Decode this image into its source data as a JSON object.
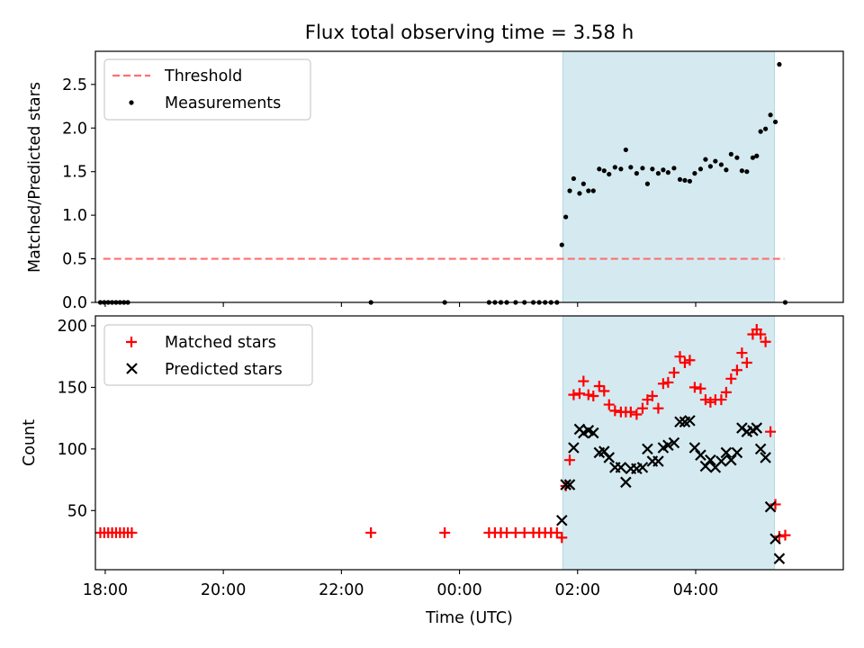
{
  "figure": {
    "title": "Flux total observing time = 3.58 h"
  },
  "chart_data": [
    {
      "type": "scatter",
      "title": "Flux total observing time = 3.58 h",
      "xlabel": "",
      "ylabel": "Matched/Predicted stars",
      "xlim": [
        "17:50",
        "06:30"
      ],
      "ylim": [
        0,
        2.88
      ],
      "yticks": [
        0.0,
        0.5,
        1.0,
        1.5,
        2.0,
        2.5
      ],
      "ytick_labels": [
        "0.0",
        "0.5",
        "1.0",
        "1.5",
        "2.0",
        "2.5"
      ],
      "xticks": [
        "18:00",
        "20:00",
        "22:00",
        "00:00",
        "02:00",
        "04:00"
      ],
      "shaded_interval": [
        "01:45",
        "05:20"
      ],
      "shade_color": "#d4eaf0",
      "legend_position": "top-left",
      "threshold": {
        "name": "Threshold",
        "y": 0.5,
        "x_range": [
          "17:58",
          "05:30"
        ],
        "color": "#ff6f6f",
        "style": "dashed"
      },
      "series": [
        {
          "name": "Measurements",
          "color": "#000000",
          "marker": "dot",
          "points": [
            [
              "17:55",
              0
            ],
            [
              "17:59",
              0
            ],
            [
              "18:03",
              0
            ],
            [
              "18:07",
              0
            ],
            [
              "18:11",
              0
            ],
            [
              "18:15",
              0
            ],
            [
              "18:19",
              0
            ],
            [
              "18:23",
              0
            ],
            [
              "22:30",
              0
            ],
            [
              "23:45",
              0
            ],
            [
              "00:30",
              0
            ],
            [
              "00:36",
              0
            ],
            [
              "00:42",
              0
            ],
            [
              "00:48",
              0
            ],
            [
              "00:57",
              0
            ],
            [
              "01:06",
              0
            ],
            [
              "01:15",
              0
            ],
            [
              "01:21",
              0
            ],
            [
              "01:27",
              0
            ],
            [
              "01:33",
              0
            ],
            [
              "01:39",
              0
            ],
            [
              "01:44",
              0.66
            ],
            [
              "01:48",
              0.98
            ],
            [
              "01:52",
              1.28
            ],
            [
              "01:56",
              1.42
            ],
            [
              "02:02",
              1.25
            ],
            [
              "02:06",
              1.36
            ],
            [
              "02:11",
              1.28
            ],
            [
              "02:16",
              1.28
            ],
            [
              "02:22",
              1.53
            ],
            [
              "02:27",
              1.51
            ],
            [
              "02:32",
              1.47
            ],
            [
              "02:38",
              1.55
            ],
            [
              "02:44",
              1.53
            ],
            [
              "02:49",
              1.75
            ],
            [
              "02:54",
              1.55
            ],
            [
              "03:00",
              1.48
            ],
            [
              "03:06",
              1.54
            ],
            [
              "03:11",
              1.36
            ],
            [
              "03:16",
              1.53
            ],
            [
              "03:22",
              1.48
            ],
            [
              "03:27",
              1.52
            ],
            [
              "03:32",
              1.49
            ],
            [
              "03:38",
              1.54
            ],
            [
              "03:44",
              1.41
            ],
            [
              "03:49",
              1.4
            ],
            [
              "03:54",
              1.39
            ],
            [
              "03:59",
              1.48
            ],
            [
              "04:05",
              1.53
            ],
            [
              "04:10",
              1.64
            ],
            [
              "04:15",
              1.56
            ],
            [
              "04:20",
              1.62
            ],
            [
              "04:26",
              1.58
            ],
            [
              "04:31",
              1.52
            ],
            [
              "04:36",
              1.7
            ],
            [
              "04:42",
              1.66
            ],
            [
              "04:47",
              1.51
            ],
            [
              "04:52",
              1.5
            ],
            [
              "04:58",
              1.66
            ],
            [
              "05:02",
              1.68
            ],
            [
              "05:06",
              1.96
            ],
            [
              "05:11",
              1.99
            ],
            [
              "05:16",
              2.15
            ],
            [
              "05:21",
              2.07
            ],
            [
              "05:25",
              2.73
            ],
            [
              "05:31",
              0
            ]
          ]
        }
      ]
    },
    {
      "type": "scatter",
      "title": "",
      "xlabel": "Time (UTC)",
      "ylabel": "Count",
      "xlim": [
        "17:50",
        "06:30"
      ],
      "ylim": [
        2,
        208
      ],
      "yticks": [
        50,
        100,
        150,
        200
      ],
      "ytick_labels": [
        "50",
        "100",
        "150",
        "200"
      ],
      "xticks": [
        "18:00",
        "20:00",
        "22:00",
        "00:00",
        "02:00",
        "04:00"
      ],
      "xtick_labels": [
        "18:00",
        "20:00",
        "22:00",
        "00:00",
        "02:00",
        "04:00"
      ],
      "shaded_interval": [
        "01:45",
        "05:20"
      ],
      "shade_color": "#d4eaf0",
      "legend_position": "top-left",
      "series": [
        {
          "name": "Matched stars",
          "color": "#ff0000",
          "marker": "plus",
          "points": [
            [
              "17:55",
              32
            ],
            [
              "17:59",
              32
            ],
            [
              "18:03",
              32
            ],
            [
              "18:07",
              32
            ],
            [
              "18:11",
              32
            ],
            [
              "18:15",
              32
            ],
            [
              "18:19",
              32
            ],
            [
              "18:23",
              32
            ],
            [
              "18:27",
              32
            ],
            [
              "22:30",
              32
            ],
            [
              "23:45",
              32
            ],
            [
              "00:30",
              32
            ],
            [
              "00:36",
              32
            ],
            [
              "00:42",
              32
            ],
            [
              "00:48",
              32
            ],
            [
              "00:57",
              32
            ],
            [
              "01:06",
              32
            ],
            [
              "01:15",
              32
            ],
            [
              "01:21",
              32
            ],
            [
              "01:27",
              32
            ],
            [
              "01:33",
              32
            ],
            [
              "01:39",
              32
            ],
            [
              "01:44",
              28
            ],
            [
              "01:48",
              70
            ],
            [
              "01:52",
              91
            ],
            [
              "01:56",
              144
            ],
            [
              "02:02",
              145
            ],
            [
              "02:06",
              155
            ],
            [
              "02:11",
              144
            ],
            [
              "02:16",
              143
            ],
            [
              "02:22",
              151
            ],
            [
              "02:27",
              147
            ],
            [
              "02:32",
              136
            ],
            [
              "02:38",
              131
            ],
            [
              "02:44",
              130
            ],
            [
              "02:49",
              130
            ],
            [
              "02:54",
              130
            ],
            [
              "03:00",
              128
            ],
            [
              "03:06",
              133
            ],
            [
              "03:11",
              140
            ],
            [
              "03:16",
              143
            ],
            [
              "03:22",
              133
            ],
            [
              "03:27",
              153
            ],
            [
              "03:32",
              154
            ],
            [
              "03:38",
              162
            ],
            [
              "03:44",
              175
            ],
            [
              "03:49",
              170
            ],
            [
              "03:54",
              172
            ],
            [
              "03:59",
              150
            ],
            [
              "04:05",
              149
            ],
            [
              "04:10",
              140
            ],
            [
              "04:15",
              138
            ],
            [
              "04:20",
              140
            ],
            [
              "04:26",
              140
            ],
            [
              "04:31",
              146
            ],
            [
              "04:36",
              157
            ],
            [
              "04:42",
              164
            ],
            [
              "04:47",
              178
            ],
            [
              "04:52",
              170
            ],
            [
              "04:58",
              193
            ],
            [
              "05:02",
              197
            ],
            [
              "05:06",
              193
            ],
            [
              "05:11",
              187
            ],
            [
              "05:16",
              114
            ],
            [
              "05:21",
              55
            ],
            [
              "05:25",
              29
            ],
            [
              "05:31",
              30
            ]
          ]
        },
        {
          "name": "Predicted stars",
          "color": "#000000",
          "marker": "x",
          "points": [
            [
              "01:44",
              42
            ],
            [
              "01:48",
              71
            ],
            [
              "01:52",
              71
            ],
            [
              "01:56",
              101
            ],
            [
              "02:02",
              116
            ],
            [
              "02:06",
              113
            ],
            [
              "02:11",
              115
            ],
            [
              "02:16",
              113
            ],
            [
              "02:22",
              97
            ],
            [
              "02:27",
              98
            ],
            [
              "02:32",
              93
            ],
            [
              "02:38",
              85
            ],
            [
              "02:44",
              85
            ],
            [
              "02:49",
              73
            ],
            [
              "02:54",
              84
            ],
            [
              "03:00",
              84
            ],
            [
              "03:06",
              85
            ],
            [
              "03:11",
              100
            ],
            [
              "03:16",
              90
            ],
            [
              "03:22",
              90
            ],
            [
              "03:27",
              101
            ],
            [
              "03:32",
              103
            ],
            [
              "03:38",
              105
            ],
            [
              "03:44",
              122
            ],
            [
              "03:49",
              122
            ],
            [
              "03:54",
              123
            ],
            [
              "03:59",
              101
            ],
            [
              "04:05",
              95
            ],
            [
              "04:10",
              86
            ],
            [
              "04:15",
              91
            ],
            [
              "04:20",
              85
            ],
            [
              "04:26",
              90
            ],
            [
              "04:31",
              97
            ],
            [
              "04:36",
              91
            ],
            [
              "04:42",
              97
            ],
            [
              "04:47",
              117
            ],
            [
              "04:52",
              114
            ],
            [
              "04:58",
              115
            ],
            [
              "05:02",
              117
            ],
            [
              "05:06",
              100
            ],
            [
              "05:11",
              93
            ],
            [
              "05:16",
              53
            ],
            [
              "05:21",
              27
            ],
            [
              "05:25",
              11
            ]
          ]
        }
      ]
    }
  ]
}
